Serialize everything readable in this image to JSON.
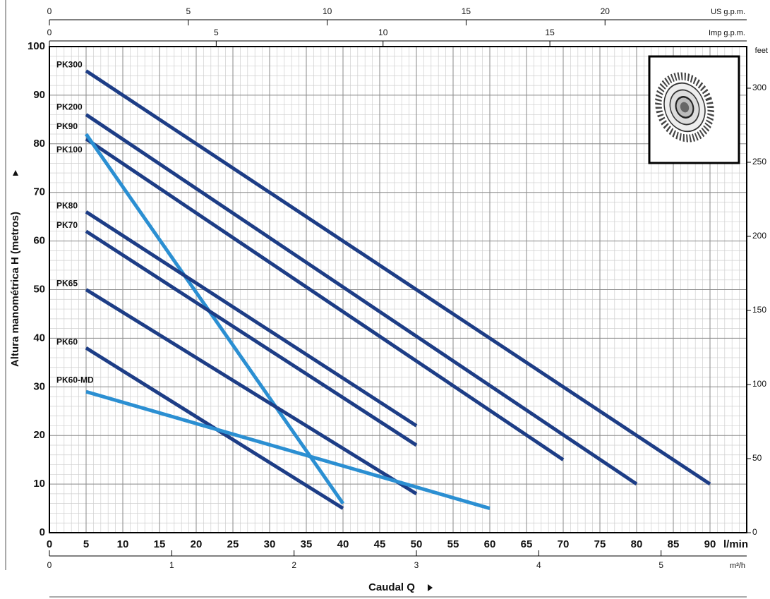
{
  "chart_data": {
    "type": "line",
    "x_label": "l/min",
    "x_title": "Caudal Q",
    "y_title": "Altura manométrica H (metros)",
    "xlim": [
      0,
      95
    ],
    "xticks": [
      0,
      5,
      10,
      15,
      20,
      25,
      30,
      35,
      40,
      45,
      50,
      55,
      60,
      65,
      70,
      75,
      80,
      85,
      90
    ],
    "ylim": [
      0,
      100
    ],
    "yticks": [
      0,
      10,
      20,
      30,
      40,
      50,
      60,
      70,
      80,
      90,
      100
    ],
    "grid": true,
    "top_axis_us": {
      "label": "US g.p.m.",
      "lim": [
        0,
        25.1
      ],
      "ticks": [
        0,
        5,
        10,
        15,
        20
      ]
    },
    "top_axis_imp": {
      "label": "Imp g.p.m.",
      "lim": [
        0,
        20.9
      ],
      "ticks": [
        0,
        5,
        10,
        15
      ]
    },
    "bottom_axis_m3h": {
      "label": "m³/h",
      "lim": [
        0,
        5.7
      ],
      "ticks": [
        0,
        1,
        2,
        3,
        4,
        5
      ]
    },
    "right_axis_feet": {
      "label": "feet",
      "lim": [
        0,
        328.1
      ],
      "ticks": [
        0,
        50,
        100,
        150,
        200,
        250,
        300
      ]
    },
    "series": [
      {
        "name": "PK300",
        "color": "#1d3d86",
        "x": [
          5,
          90
        ],
        "values": [
          95,
          10
        ]
      },
      {
        "name": "PK200",
        "color": "#1d3d86",
        "x": [
          5,
          80
        ],
        "values": [
          86,
          10
        ]
      },
      {
        "name": "PK100",
        "color": "#1d3d86",
        "x": [
          5,
          70
        ],
        "values": [
          81,
          15
        ]
      },
      {
        "name": "PK90",
        "color": "#2b8fd2",
        "x": [
          5,
          40
        ],
        "values": [
          82,
          6
        ]
      },
      {
        "name": "PK80",
        "color": "#1d3d86",
        "x": [
          5,
          50
        ],
        "values": [
          66,
          22
        ]
      },
      {
        "name": "PK70",
        "color": "#1d3d86",
        "x": [
          5,
          50
        ],
        "values": [
          62,
          18
        ]
      },
      {
        "name": "PK65",
        "color": "#1d3d86",
        "x": [
          5,
          50
        ],
        "values": [
          50,
          8
        ]
      },
      {
        "name": "PK60",
        "color": "#1d3d86",
        "x": [
          5,
          40
        ],
        "values": [
          38,
          5
        ]
      },
      {
        "name": "PK60-MD",
        "color": "#2b8fd2",
        "x": [
          5,
          60
        ],
        "values": [
          29,
          5
        ]
      }
    ]
  }
}
